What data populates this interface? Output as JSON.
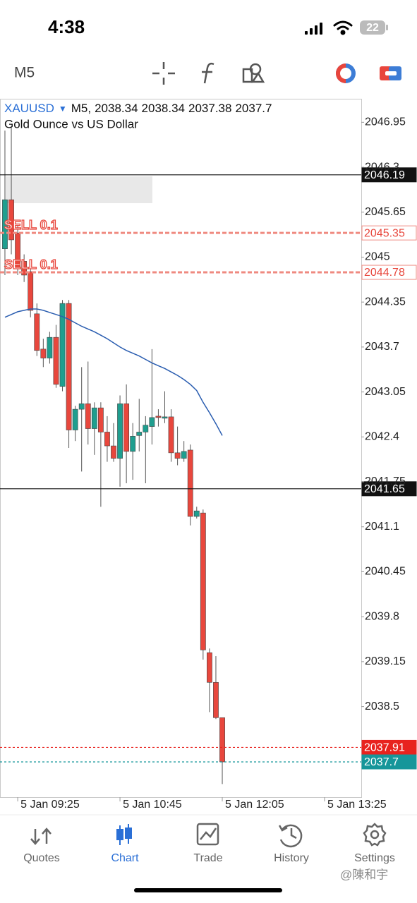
{
  "status_bar": {
    "time": "4:38",
    "battery": "22"
  },
  "toolbar": {
    "timeframe": "M5"
  },
  "chart_data": {
    "type": "candlestick",
    "symbol": "XAUUSD",
    "period": "M5,",
    "description": "Gold Ounce vs US Dollar",
    "up_color": "#1f9e8f",
    "down_color": "#e8473d",
    "open": [
      2045.12,
      2045.83,
      2045.35,
      2044.94,
      2044.79,
      2044.18,
      2043.67,
      2043.54,
      2043.84,
      2043.13,
      2044.33,
      2042.5,
      2042.8,
      2042.88,
      2042.52,
      2042.82,
      2042.47,
      2042.27,
      2042.09,
      2042.88,
      2042.19,
      2042.42,
      2042.47,
      2042.55,
      2042.7,
      2042.67,
      2042.69,
      2042.17,
      2042.09,
      2042.21,
      2041.25,
      2041.3,
      2039.28,
      2038.85,
      2038.34
    ],
    "high": [
      2046.83,
      2046.88,
      2045.45,
      2045.04,
      2044.89,
      2044.33,
      2043.82,
      2043.92,
      2044.02,
      2044.38,
      2044.38,
      2042.85,
      2043.41,
      2043.49,
      2042.9,
      2042.9,
      2042.7,
      2042.6,
      2043.0,
      2043.16,
      2042.6,
      2042.95,
      2042.7,
      2043.67,
      2042.8,
      2043.06,
      2042.8,
      2042.55,
      2042.34,
      2042.29,
      2041.39,
      2041.35,
      2039.34,
      2039.23,
      2038.34
    ],
    "low": [
      2044.74,
      2045.04,
      2044.74,
      2044.64,
      2044.13,
      2043.57,
      2043.41,
      2043.46,
      2043.11,
      2043.06,
      2042.24,
      2042.34,
      2041.9,
      2042.29,
      2042.14,
      2041.39,
      2042.04,
      2042.04,
      2041.68,
      2041.73,
      2041.78,
      2042.19,
      2041.73,
      2042.29,
      2042.55,
      2042.6,
      2042.04,
      2041.99,
      2042.04,
      2041.12,
      2041.22,
      2039.18,
      2038.42,
      2038.32,
      2037.38
    ],
    "close": [
      2045.83,
      2045.25,
      2044.84,
      2044.74,
      2044.23,
      2043.65,
      2043.54,
      2043.84,
      2043.16,
      2044.33,
      2042.5,
      2042.8,
      2042.88,
      2042.52,
      2042.82,
      2042.47,
      2042.27,
      2042.09,
      2042.88,
      2042.19,
      2042.41,
      2042.47,
      2042.57,
      2042.68,
      2042.68,
      2042.69,
      2042.17,
      2042.09,
      2042.19,
      2041.25,
      2041.33,
      2039.32,
      2038.85,
      2038.34,
      2037.7
    ],
    "ma": {
      "color": "#2a5db0",
      "values": [
        2044.13,
        2044.17,
        2044.21,
        2044.23,
        2044.25,
        2044.25,
        2044.23,
        2044.2,
        2044.17,
        2044.14,
        2044.1,
        2044.05,
        2044.0,
        2043.96,
        2043.92,
        2043.87,
        2043.82,
        2043.76,
        2043.7,
        2043.65,
        2043.61,
        2043.57,
        2043.52,
        2043.47,
        2043.43,
        2043.39,
        2043.34,
        2043.29,
        2043.23,
        2043.16,
        2043.07,
        2042.9,
        2042.75,
        2042.59,
        2042.42
      ]
    },
    "ylim": [
      2037.19,
      2047.29
    ],
    "yticks": [
      2046.95,
      2046.3,
      2045.65,
      2045.0,
      2044.35,
      2043.7,
      2043.05,
      2042.4,
      2041.75,
      2041.1,
      2040.45,
      2039.8,
      2039.15,
      2038.5
    ],
    "xlim": [
      -0.77,
      55.74
    ],
    "xticks": [
      {
        "value": 2,
        "label": "5 Jan 09:25"
      },
      {
        "value": 18,
        "label": "5 Jan 10:45"
      },
      {
        "value": 34,
        "label": "5 Jan 12:05"
      },
      {
        "value": 50,
        "label": "5 Jan 13:25"
      }
    ],
    "levels": [
      {
        "value": 2046.19,
        "color": "#111111",
        "style": "solid",
        "tag": "fill"
      },
      {
        "value": 2045.35,
        "color": "#ef8a80",
        "style": "dashed",
        "tag": "outline",
        "label": "SELL 0.1"
      },
      {
        "value": 2044.78,
        "color": "#ef8a80",
        "style": "dashed",
        "tag": "outline",
        "label": "SELL 0.1"
      },
      {
        "value": 2041.65,
        "color": "#111111",
        "style": "solid",
        "tag": "fill"
      },
      {
        "value": 2037.91,
        "color": "#e8231e",
        "style": "dotted",
        "tag": "fill"
      },
      {
        "value": 2037.7,
        "color": "#16969a",
        "style": "dotted",
        "tag": "fill"
      }
    ]
  },
  "nav": {
    "items": [
      "Quotes",
      "Chart",
      "Trade",
      "History",
      "Settings"
    ],
    "active": 1
  },
  "watermark": "@陳和宇"
}
